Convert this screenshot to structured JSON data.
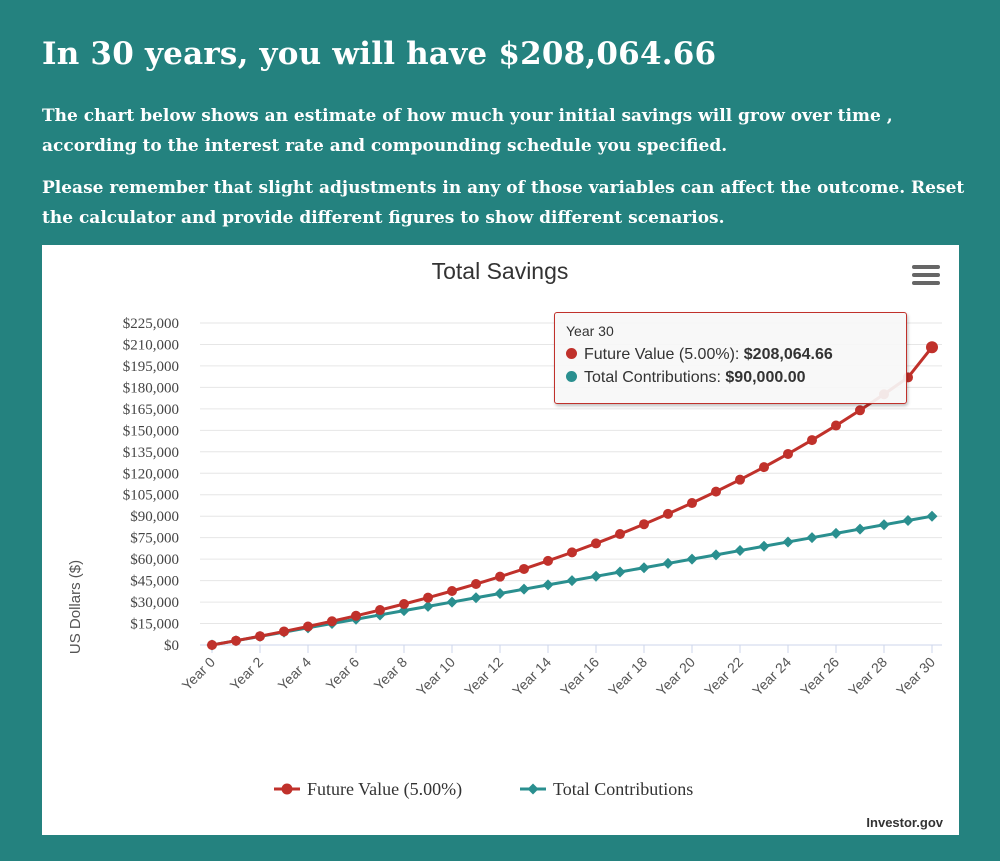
{
  "headline": "In 30 years, you will have $208,064.66",
  "paragraphs": [
    "The chart below shows an estimate of how much your initial savings will grow over time , according to the interest rate and compounding schedule you specified.",
    "Please remember that slight adjustments in any of those variables can affect the outcome. Reset the calculator and provide different figures to show different scenarios."
  ],
  "credit": "Investor.gov",
  "tooltip": {
    "title": "Year 30",
    "rows": [
      {
        "series": "Future Value (5.00%)",
        "value": "$208,064.66"
      },
      {
        "series": "Total Contributions",
        "value": "$90,000.00"
      }
    ]
  },
  "colors": {
    "background": "#24827f",
    "future_value": "#c0312b",
    "contributions": "#2a8f8f"
  },
  "icons": {
    "menu": "hamburger-menu-icon"
  },
  "chart_data": {
    "type": "line",
    "title": "Total Savings",
    "ylabel": "US Dollars ($)",
    "xlabel": "",
    "x": [
      "Year 0",
      "Year 1",
      "Year 2",
      "Year 3",
      "Year 4",
      "Year 5",
      "Year 6",
      "Year 7",
      "Year 8",
      "Year 9",
      "Year 10",
      "Year 11",
      "Year 12",
      "Year 13",
      "Year 14",
      "Year 15",
      "Year 16",
      "Year 17",
      "Year 18",
      "Year 19",
      "Year 20",
      "Year 21",
      "Year 22",
      "Year 23",
      "Year 24",
      "Year 25",
      "Year 26",
      "Year 27",
      "Year 28",
      "Year 29",
      "Year 30"
    ],
    "x_tick_labels": [
      "Year 0",
      "Year 2",
      "Year 4",
      "Year 6",
      "Year 8",
      "Year 10",
      "Year 12",
      "Year 14",
      "Year 16",
      "Year 18",
      "Year 20",
      "Year 22",
      "Year 24",
      "Year 26",
      "Year 28",
      "Year 30"
    ],
    "y_tick_labels": [
      "$0",
      "$15,000",
      "$30,000",
      "$45,000",
      "$60,000",
      "$75,000",
      "$90,000",
      "$105,000",
      "$120,000",
      "$135,000",
      "$150,000",
      "$165,000",
      "$180,000",
      "$195,000",
      "$210,000",
      "$225,000"
    ],
    "ylim": [
      0,
      225000
    ],
    "grid": true,
    "legend_position": "bottom",
    "series": [
      {
        "name": "Future Value (5.00%)",
        "marker": "circle",
        "values": [
          0,
          3000,
          6150,
          9458,
          12930,
          16577,
          20406,
          24426,
          28647,
          33080,
          37734,
          42620,
          47751,
          53139,
          58796,
          64736,
          70972,
          77521,
          84397,
          91617,
          99198,
          107158,
          115516,
          124291,
          133506,
          143181,
          153340,
          164007,
          175208,
          186968,
          208065
        ]
      },
      {
        "name": "Total Contributions",
        "marker": "diamond",
        "values": [
          0,
          3000,
          6000,
          9000,
          12000,
          15000,
          18000,
          21000,
          24000,
          27000,
          30000,
          33000,
          36000,
          39000,
          42000,
          45000,
          48000,
          51000,
          54000,
          57000,
          60000,
          63000,
          66000,
          69000,
          72000,
          75000,
          78000,
          81000,
          84000,
          87000,
          90000
        ]
      }
    ]
  }
}
